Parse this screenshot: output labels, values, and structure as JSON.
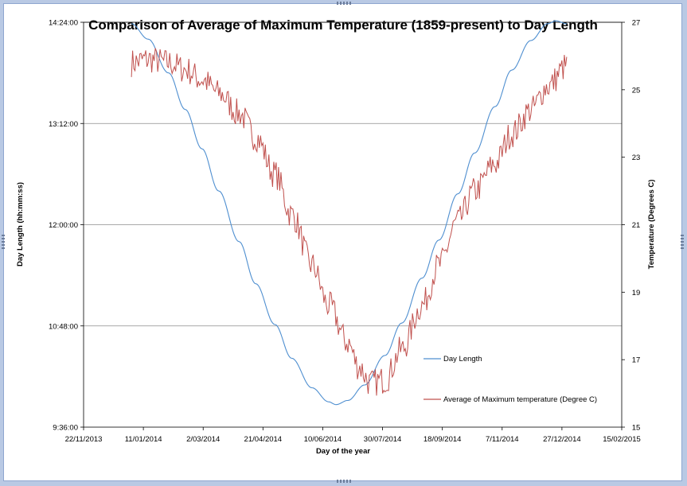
{
  "chart_data": {
    "type": "line",
    "title": "Comparison of Average of Maximum Temperature (1859-present) to Day Length",
    "xlabel": "Day of the year",
    "ylabel_left": "Day Length (hh:mm:ss)",
    "ylabel_right": "Temperature (Degrees C)",
    "x_axis": {
      "ticks": [
        "22/11/2013",
        "11/01/2014",
        "2/03/2014",
        "21/04/2014",
        "10/06/2014",
        "30/07/2014",
        "18/09/2014",
        "7/11/2014",
        "27/12/2014",
        "15/02/2015"
      ],
      "range": [
        "2013-11-22",
        "2015-02-15"
      ]
    },
    "y_left": {
      "ticks": [
        "9:36:00",
        "10:48:00",
        "12:00:00",
        "13:12:00",
        "14:24:00"
      ],
      "range_hours": [
        9.6,
        14.4
      ]
    },
    "y_right": {
      "ticks": [
        "15",
        "17",
        "19",
        "21",
        "23",
        "25",
        "27"
      ],
      "range": [
        15,
        27
      ]
    },
    "grid": "horizontal major gridlines on left axis",
    "legend_position": "right, inside plot",
    "series": [
      {
        "name": "Day Length",
        "axis": "left",
        "color": "#4f8fd0",
        "x": [
          "2014-01-01",
          "2014-01-15",
          "2014-02-01",
          "2014-02-15",
          "2014-03-01",
          "2014-03-15",
          "2014-04-01",
          "2014-04-15",
          "2014-05-01",
          "2014-05-15",
          "2014-06-01",
          "2014-06-15",
          "2014-06-21",
          "2014-07-01",
          "2014-07-15",
          "2014-08-01",
          "2014-08-15",
          "2014-09-01",
          "2014-09-15",
          "2014-10-01",
          "2014-10-15",
          "2014-11-01",
          "2014-11-15",
          "2014-12-01",
          "2014-12-15",
          "2014-12-22",
          "2014-12-31"
        ],
        "values_hhmm": [
          "14:23",
          "14:12",
          "13:48",
          "13:22",
          "12:54",
          "12:24",
          "11:48",
          "11:18",
          "10:49",
          "10:25",
          "10:04",
          "9:54",
          "9:52",
          "9:55",
          "10:06",
          "10:27",
          "10:50",
          "11:22",
          "11:49",
          "12:22",
          "12:51",
          "13:24",
          "13:50",
          "14:11",
          "14:23",
          "14:25",
          "14:23"
        ]
      },
      {
        "name": "Average of Maximum temperature (Degree C)",
        "axis": "right",
        "color": "#c0504d",
        "x": [
          "2014-01-01",
          "2014-01-15",
          "2014-02-01",
          "2014-02-15",
          "2014-03-01",
          "2014-03-15",
          "2014-04-01",
          "2014-04-15",
          "2014-05-01",
          "2014-05-15",
          "2014-06-01",
          "2014-06-15",
          "2014-07-01",
          "2014-07-10",
          "2014-07-20",
          "2014-08-01",
          "2014-08-15",
          "2014-09-01",
          "2014-09-15",
          "2014-10-01",
          "2014-10-15",
          "2014-11-01",
          "2014-11-15",
          "2014-12-01",
          "2014-12-15",
          "2014-12-31"
        ],
        "values": [
          25.8,
          25.9,
          25.8,
          25.6,
          25.3,
          24.9,
          24.3,
          23.6,
          22.5,
          21.3,
          19.8,
          18.6,
          17.5,
          16.8,
          16.3,
          16.4,
          17.3,
          18.6,
          19.8,
          21.1,
          22.0,
          22.8,
          23.7,
          24.4,
          25.1,
          25.7
        ]
      }
    ]
  }
}
